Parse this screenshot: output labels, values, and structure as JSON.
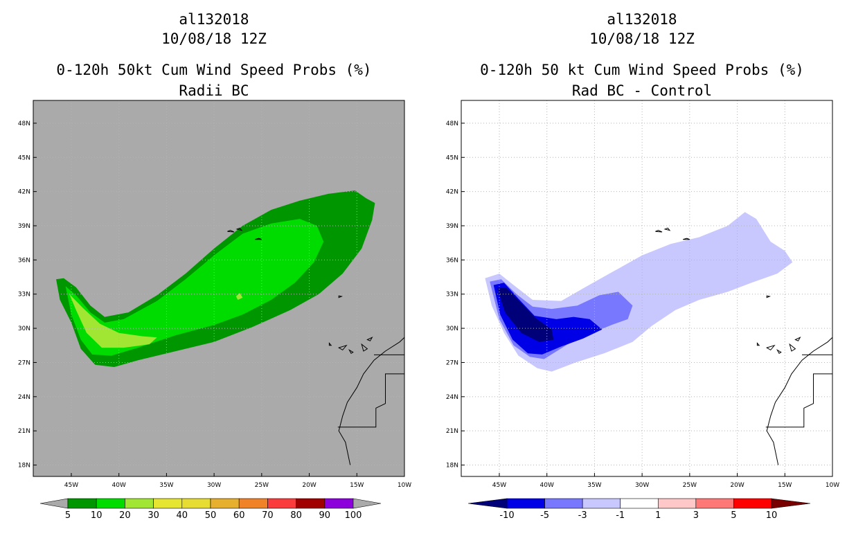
{
  "chart_data": [
    {
      "type": "heatmap",
      "storm_id": "al132018",
      "date": "10/08/18 12Z",
      "title": "0-120h 50kt Cum Wind Speed Probs (%)",
      "subtitle": "Radii BC",
      "x_ticks": [
        "45W",
        "40W",
        "35W",
        "30W",
        "25W",
        "20W",
        "15W",
        "10W"
      ],
      "y_ticks": [
        "48N",
        "45N",
        "42N",
        "39N",
        "36N",
        "33N",
        "30N",
        "27N",
        "24N",
        "21N",
        "18N"
      ],
      "x_range_lon": [
        -49,
        -10
      ],
      "y_range_lat": [
        17,
        50
      ],
      "background": "#aaaaaa",
      "levels": [
        {
          "min": 5,
          "max": 10,
          "color": "#009600"
        },
        {
          "min": 10,
          "max": 20,
          "color": "#00dc00"
        },
        {
          "min": 20,
          "max": 30,
          "color": "#a0e632"
        }
      ],
      "colorbar": {
        "labels": [
          "5",
          "10",
          "20",
          "30",
          "40",
          "50",
          "60",
          "70",
          "80",
          "90",
          "100"
        ],
        "colors": [
          "#009600",
          "#00dc00",
          "#a0e632",
          "#e6e632",
          "#e6dc32",
          "#e6af2d",
          "#f08228",
          "#fa3c3c",
          "#a00000",
          "#8c00dc"
        ],
        "under": "#aaaaaa",
        "over": "#aaaaaa"
      }
    },
    {
      "type": "heatmap",
      "storm_id": "al132018",
      "date": "10/08/18 12Z",
      "title": "0-120h 50 kt Cum Wind Speed Probs (%)",
      "subtitle": "Rad BC - Control",
      "x_ticks": [
        "45W",
        "40W",
        "35W",
        "30W",
        "25W",
        "20W",
        "15W",
        "10W"
      ],
      "y_ticks": [
        "48N",
        "45N",
        "42N",
        "39N",
        "36N",
        "33N",
        "30N",
        "27N",
        "24N",
        "21N",
        "18N"
      ],
      "x_range_lon": [
        -49,
        -10
      ],
      "y_range_lat": [
        17,
        50
      ],
      "background": "#ffffff",
      "levels": [
        {
          "min": -3,
          "max": -1,
          "color": "#c8c8ff"
        },
        {
          "min": -5,
          "max": -3,
          "color": "#7878ff"
        },
        {
          "min": -10,
          "max": -5,
          "color": "#0000e6"
        },
        {
          "max": -10,
          "color": "#000078"
        }
      ],
      "colorbar": {
        "labels": [
          "-10",
          "-5",
          "-3",
          "-1",
          "1",
          "3",
          "5",
          "10"
        ],
        "colors": [
          "#0000e6",
          "#7878ff",
          "#c8c8ff",
          "#ffffff",
          "#ffc8c8",
          "#ff7878",
          "#ff0000"
        ],
        "under": "#000078",
        "over": "#780000"
      }
    }
  ]
}
